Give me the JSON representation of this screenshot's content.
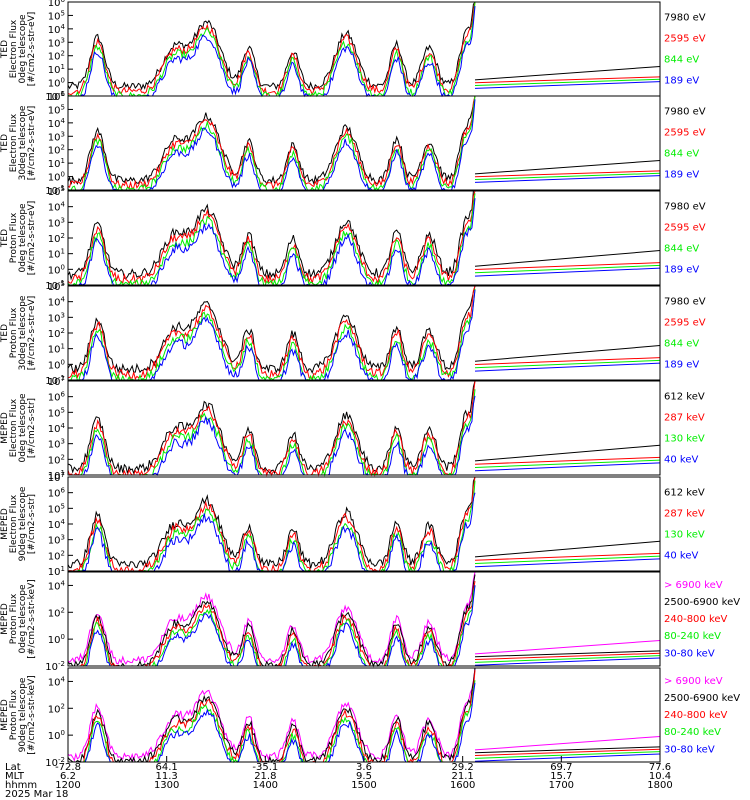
{
  "colors": {
    "black": "#000000",
    "red": "#ff0000",
    "green": "#00ee00",
    "blue": "#0000ff",
    "magenta": "#ff00ff"
  },
  "chart_data": [
    {
      "type": "line",
      "ylabel_lines": [
        "TED",
        "Electron Flux",
        "0deg telescope",
        "[#/cm2-s-str-eV]"
      ],
      "yscale": "log",
      "ylim": [
        0.1,
        1000000
      ],
      "ytick_exponents": [
        -1,
        0,
        1,
        2,
        3,
        4,
        5,
        6
      ],
      "series": [
        {
          "name": "7980 eV",
          "color": "black"
        },
        {
          "name": "2595 eV",
          "color": "red"
        },
        {
          "name": "844 eV",
          "color": "green"
        },
        {
          "name": "189 eV",
          "color": "blue"
        }
      ]
    },
    {
      "type": "line",
      "ylabel_lines": [
        "TED",
        "Electron Flux",
        "30deg telescope",
        "[#/cm2-s-str-eV]"
      ],
      "yscale": "log",
      "ylim": [
        0.1,
        1000000
      ],
      "ytick_exponents": [
        -1,
        0,
        1,
        2,
        3,
        4,
        5,
        6
      ],
      "series": [
        {
          "name": "7980 eV",
          "color": "black"
        },
        {
          "name": "2595 eV",
          "color": "red"
        },
        {
          "name": "844 eV",
          "color": "green"
        },
        {
          "name": "189 eV",
          "color": "blue"
        }
      ]
    },
    {
      "type": "line",
      "ylabel_lines": [
        "TED",
        "Proton Flux",
        "0deg telescope",
        "[#/cm2-s-str-eV]"
      ],
      "yscale": "log",
      "ylim": [
        0.1,
        100000
      ],
      "ytick_exponents": [
        -1,
        0,
        1,
        2,
        3,
        4,
        5
      ],
      "series": [
        {
          "name": "7980 eV",
          "color": "black"
        },
        {
          "name": "2595 eV",
          "color": "red"
        },
        {
          "name": "844 eV",
          "color": "green"
        },
        {
          "name": "189 eV",
          "color": "blue"
        }
      ]
    },
    {
      "type": "line",
      "ylabel_lines": [
        "TED",
        "Proton Flux",
        "30deg telescope",
        "[#/cm2-s-str-eV]"
      ],
      "yscale": "log",
      "ylim": [
        0.1,
        100000
      ],
      "ytick_exponents": [
        -1,
        0,
        1,
        2,
        3,
        4,
        5
      ],
      "series": [
        {
          "name": "7980 eV",
          "color": "black"
        },
        {
          "name": "2595 eV",
          "color": "red"
        },
        {
          "name": "844 eV",
          "color": "green"
        },
        {
          "name": "189 eV",
          "color": "blue"
        }
      ]
    },
    {
      "type": "line",
      "ylabel_lines": [
        "MEPED",
        "Electron Flux",
        "0deg telescope",
        "[#/cm2-s-str]"
      ],
      "yscale": "log",
      "ylim": [
        10,
        10000000
      ],
      "ytick_exponents": [
        1,
        2,
        3,
        4,
        5,
        6,
        7
      ],
      "series": [
        {
          "name": "612 keV",
          "color": "black"
        },
        {
          "name": "287 keV",
          "color": "red"
        },
        {
          "name": "130 keV",
          "color": "green"
        },
        {
          "name": "40 keV",
          "color": "blue"
        }
      ]
    },
    {
      "type": "line",
      "ylabel_lines": [
        "MEPED",
        "Electron Flux",
        "90deg telescope",
        "[#/cm2-s-str]"
      ],
      "yscale": "log",
      "ylim": [
        10,
        10000000
      ],
      "ytick_exponents": [
        1,
        2,
        3,
        4,
        5,
        6,
        7
      ],
      "series": [
        {
          "name": "612 keV",
          "color": "black"
        },
        {
          "name": "287 keV",
          "color": "red"
        },
        {
          "name": "130 keV",
          "color": "green"
        },
        {
          "name": "40 keV",
          "color": "blue"
        }
      ]
    },
    {
      "type": "line",
      "ylabel_lines": [
        "MEPED",
        "Proton Flux",
        "0deg telescope",
        "[#/cm2-s-str-keV]"
      ],
      "yscale": "log",
      "ylim": [
        0.01,
        100000
      ],
      "ytick_exponents": [
        -2,
        0,
        2,
        4
      ],
      "series": [
        {
          "name": "> 6900 keV",
          "color": "magenta"
        },
        {
          "name": "2500-6900 keV",
          "color": "black"
        },
        {
          "name": "240-800 keV",
          "color": "red"
        },
        {
          "name": "80-240 keV",
          "color": "green"
        },
        {
          "name": "30-80 keV",
          "color": "blue"
        }
      ]
    },
    {
      "type": "line",
      "ylabel_lines": [
        "MEPED",
        "Proton Flux",
        "90deg telescope",
        "[#/cm2-s-str-keV]"
      ],
      "yscale": "log",
      "ylim": [
        0.01,
        100000
      ],
      "ytick_exponents": [
        -2,
        0,
        2,
        4
      ],
      "series": [
        {
          "name": "> 6900 keV",
          "color": "magenta"
        },
        {
          "name": "2500-6900 keV",
          "color": "black"
        },
        {
          "name": "240-800 keV",
          "color": "red"
        },
        {
          "name": "80-240 keV",
          "color": "green"
        },
        {
          "name": "30-80 keV",
          "color": "blue"
        }
      ]
    }
  ],
  "time_axis": {
    "row_labels": [
      "Lat",
      "MLT",
      "hhmm",
      "2025 Mar 18"
    ],
    "ticks": [
      {
        "lat": "-72.8",
        "mlt": "6.2",
        "hhmm": "1200"
      },
      {
        "lat": "64.1",
        "mlt": "11.3",
        "hhmm": "1300"
      },
      {
        "lat": "-35.1",
        "mlt": "21.8",
        "hhmm": "1400"
      },
      {
        "lat": "3.6",
        "mlt": "9.5",
        "hhmm": "1500"
      },
      {
        "lat": "29.2",
        "mlt": "21.1",
        "hhmm": "1600"
      },
      {
        "lat": "69.7",
        "mlt": "15.7",
        "hhmm": "1700"
      },
      {
        "lat": "77.6",
        "mlt": "10.4",
        "hhmm": "1800"
      }
    ]
  }
}
